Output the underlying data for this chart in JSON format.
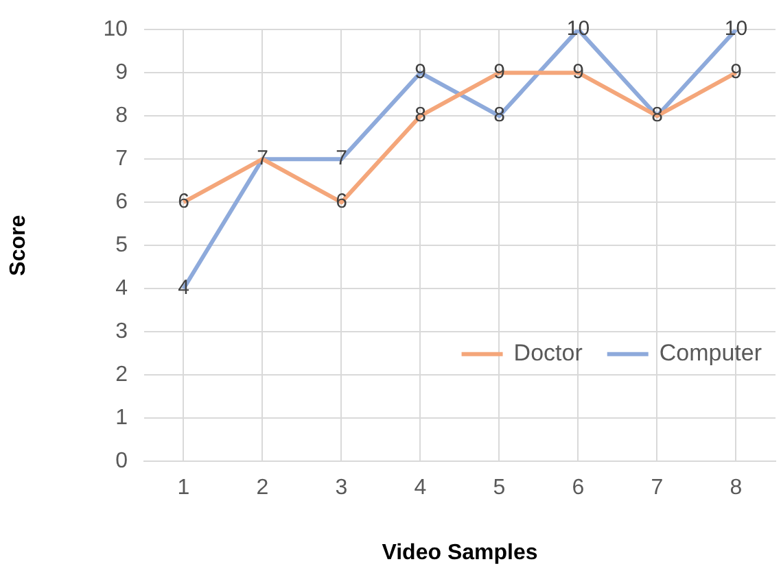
{
  "chart_data": {
    "type": "line",
    "xlabel": "Video Samples",
    "ylabel": "Score",
    "categories": [
      "1",
      "2",
      "3",
      "4",
      "5",
      "6",
      "7",
      "8"
    ],
    "series": [
      {
        "name": "Doctor",
        "color": "#f4a67a",
        "values": [
          6,
          7,
          6,
          8,
          9,
          9,
          8,
          9
        ],
        "value_labels": [
          "6",
          "7",
          "6",
          "8",
          "9",
          "9",
          "8",
          "9"
        ]
      },
      {
        "name": "Computer",
        "color": "#8eaadb",
        "values": [
          4,
          7,
          7,
          9,
          8,
          10,
          8,
          10
        ],
        "value_labels": [
          "4",
          null,
          "7",
          "9",
          "8",
          "10",
          null,
          "10"
        ]
      }
    ],
    "ylim": [
      0,
      10
    ],
    "yticks": [
      0,
      1,
      2,
      3,
      4,
      5,
      6,
      7,
      8,
      9,
      10
    ],
    "grid": true,
    "legend": "right",
    "marker": "none",
    "line_style": "solid"
  }
}
